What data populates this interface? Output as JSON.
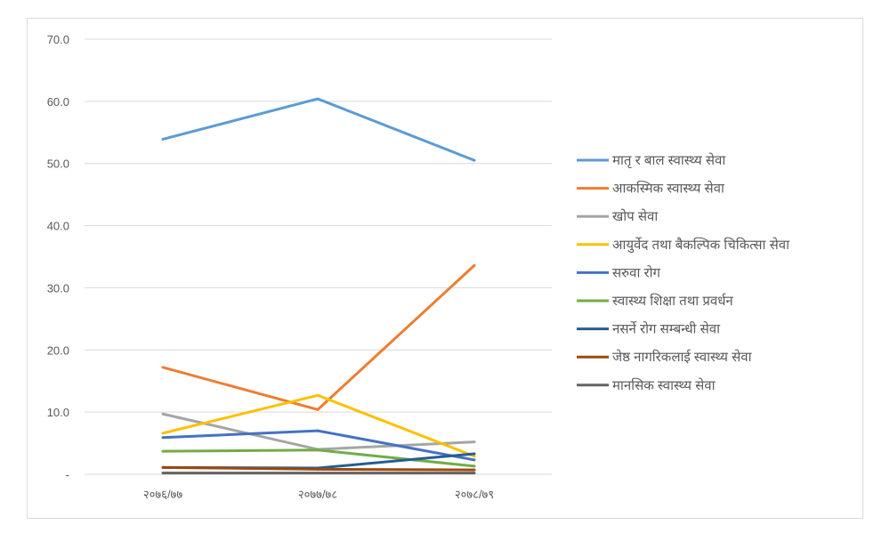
{
  "chart_data": {
    "type": "line",
    "categories": [
      "२०७६/७७",
      "२०७७/७८",
      "२०७८/७९"
    ],
    "ylim": [
      0,
      70
    ],
    "y_ticks": [
      "-",
      "10.0",
      "20.0",
      "30.0",
      "40.0",
      "50.0",
      "60.0",
      "70.0"
    ],
    "grid": true,
    "legend_position": "right",
    "series": [
      {
        "name": "मातृ र बाल स्वास्थ्य सेवा",
        "color": "#5b9bd5",
        "values": [
          53.9,
          60.4,
          50.5
        ]
      },
      {
        "name": "आकस्मिक स्वास्थ्य सेवा",
        "color": "#ed7d31",
        "values": [
          17.2,
          10.4,
          33.6
        ]
      },
      {
        "name": "खोप सेवा",
        "color": "#a5a5a5",
        "values": [
          9.7,
          4.0,
          5.2
        ]
      },
      {
        "name": "आयुर्वेद तथा बैकल्पिक चिकित्सा सेवा",
        "color": "#ffc000",
        "values": [
          6.6,
          12.7,
          2.9
        ]
      },
      {
        "name": "सरुवा रोग",
        "color": "#4472c4",
        "values": [
          5.9,
          7.0,
          2.3
        ]
      },
      {
        "name": "स्वास्थ्य शिक्षा तथा प्रवर्धन",
        "color": "#70ad47",
        "values": [
          3.7,
          3.9,
          1.3
        ]
      },
      {
        "name": "नसर्ने रोग सम्बन्धी सेवा",
        "color": "#255e91",
        "values": [
          1.1,
          1.0,
          3.3
        ]
      },
      {
        "name": "जेष्ठ नागरिकलाई स्वास्थ्य सेवा",
        "color": "#9e480e",
        "values": [
          1.1,
          0.8,
          0.7
        ]
      },
      {
        "name": "मानसिक स्वास्थ्य सेवा",
        "color": "#636363",
        "values": [
          0.2,
          0.2,
          0.2
        ]
      }
    ]
  }
}
